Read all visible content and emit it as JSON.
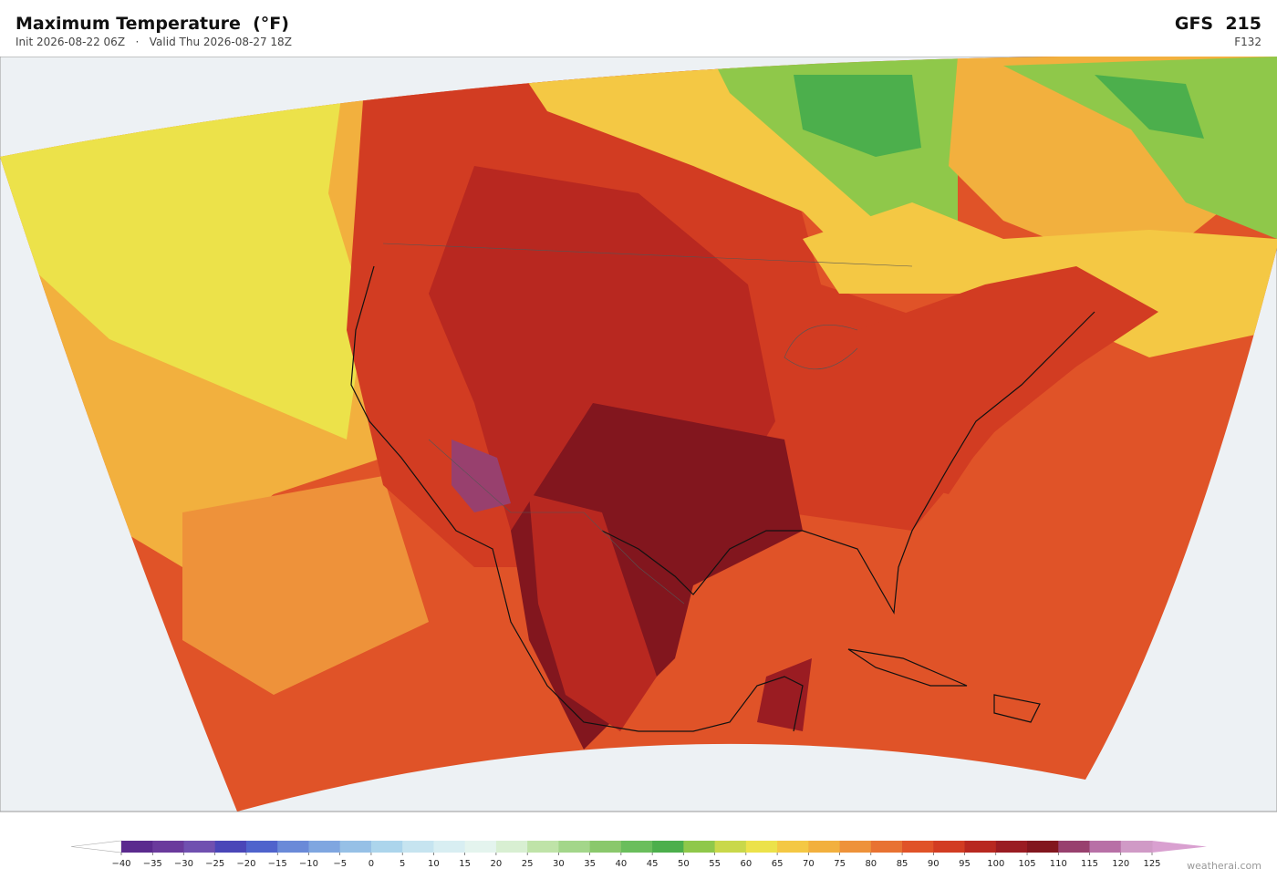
{
  "header": {
    "title": "Maximum Temperature  (°F)",
    "init": "Init 2026-08-22 06Z",
    "separator": "·",
    "valid": "Valid Thu 2026-08-27 18Z",
    "model": "GFS  215",
    "forecast_hour": "F132"
  },
  "colorbar": {
    "ticks": [
      {
        "value": -40,
        "label": "−40"
      },
      {
        "value": -35,
        "label": "−35"
      },
      {
        "value": -30,
        "label": "−30"
      },
      {
        "value": -25,
        "label": "−25"
      },
      {
        "value": -20,
        "label": "−20"
      },
      {
        "value": -15,
        "label": "−15"
      },
      {
        "value": -10,
        "label": "−10"
      },
      {
        "value": -5,
        "label": "−5"
      },
      0,
      5,
      10,
      15,
      20,
      25,
      30,
      35,
      40,
      45,
      50,
      55,
      60,
      65,
      70,
      75,
      80,
      85,
      90,
      95,
      100,
      105,
      110,
      115,
      120,
      125
    ],
    "colors": [
      "#5b2a8e",
      "#6a3a9c",
      "#7050b0",
      "#4a46b8",
      "#4f63cc",
      "#6a8ad8",
      "#7fa6e0",
      "#96c0e6",
      "#acd5ec",
      "#c6e4f0",
      "#d8eef2",
      "#e4f4ee",
      "#d8efd2",
      "#bfe3a8",
      "#a3d68a",
      "#8ac86c",
      "#6abe5c",
      "#4caf4c",
      "#8fc84a",
      "#c9d84a",
      "#ece24a",
      "#f4c844",
      "#f2b03e",
      "#ee923a",
      "#e87232",
      "#e05328",
      "#d23c22",
      "#b82820",
      "#9a1c22",
      "#82161e",
      "#98406e",
      "#b870a6",
      "#d09ac6"
    ],
    "under_color": "#ffffff",
    "over_color": "#d9a0d0"
  },
  "footer": {
    "credit": "weatherai.com"
  }
}
